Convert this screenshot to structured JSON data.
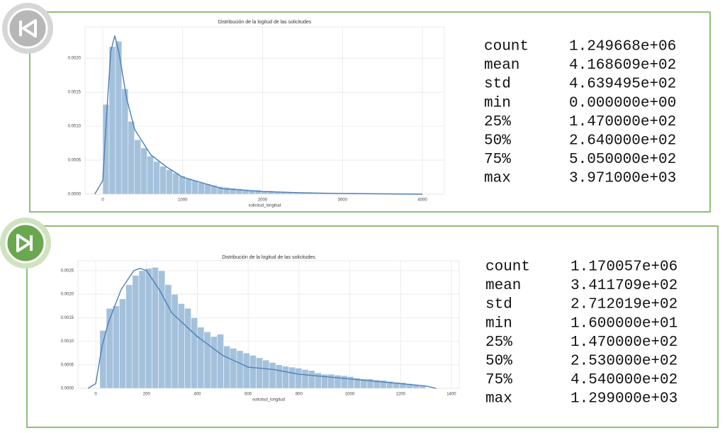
{
  "chart_data": [
    {
      "type": "histogram",
      "title": "Distribución de la logitud de las solicitudes",
      "x_label": "solicitud_longitud",
      "color": "#a4c1dc",
      "kde_color": "#4a80b5",
      "grid": true,
      "xlim": [
        -222,
        4275
      ],
      "ylim": [
        0,
        0.00246
      ],
      "xticks": [
        0,
        1000,
        2000,
        3000,
        4000
      ],
      "yticks": [
        {
          "value": 0,
          "label": "0.0000"
        },
        {
          "value": 0.0005,
          "label": "0.0005"
        },
        {
          "value": 0.001,
          "label": "0.0010"
        },
        {
          "value": 0.0015,
          "label": "0.0015"
        },
        {
          "value": 0.002,
          "label": "0.0020"
        }
      ],
      "bins": [
        0,
        79.42,
        158.84,
        238.26,
        317.68,
        397.1,
        476.52,
        555.94,
        635.36,
        714.78,
        794.2,
        873.62,
        953.04,
        1032.46,
        1111.88,
        1191.3,
        1270.72,
        1350.14,
        1429.56,
        1508.98,
        1588.4,
        1667.82,
        1747.24,
        1826.66,
        1906.08,
        1985.5,
        2064.92,
        2144.34,
        2223.76,
        2303.18,
        2382.6,
        2462.02,
        2541.44,
        2620.86,
        2700.28,
        2779.7,
        2859.12,
        2938.54,
        3017.96,
        3097.38,
        3176.8,
        3256.22,
        3335.64,
        3415.06,
        3494.48,
        3573.9,
        3653.32,
        3732.74,
        3812.16,
        3891.58,
        3971
      ],
      "values": [
        0.00132,
        0.00217,
        0.00225,
        0.00155,
        0.00107,
        0.0008,
        0.00068,
        0.00056,
        0.00048,
        0.00041,
        0.00036,
        0.00031,
        0.00027,
        0.00023,
        0.0002,
        0.00017,
        0.00015,
        0.00013,
        0.00011,
        0.0001,
        9e-05,
        8e-05,
        7e-05,
        6e-05,
        6e-05,
        5e-05,
        5e-05,
        4e-05,
        4e-05,
        3e-05,
        3e-05,
        3e-05,
        3e-05,
        2e-05,
        2e-05,
        2e-05,
        2e-05,
        2e-05,
        2e-05,
        2e-05,
        1e-05,
        1e-05,
        1e-05,
        1e-05,
        1e-05,
        1e-05,
        1e-05,
        1e-05,
        1e-05,
        1e-05
      ],
      "kde": {
        "x": [
          -100,
          0,
          50,
          100,
          150,
          200,
          300,
          400,
          600,
          800,
          1000,
          1500,
          2000,
          2500,
          3000,
          4000
        ],
        "y": [
          0,
          0.0002,
          0.0012,
          0.0021,
          0.00233,
          0.0021,
          0.0014,
          0.00095,
          0.00058,
          0.0004,
          0.00025,
          8e-05,
          4e-05,
          2e-05,
          1e-05,
          0
        ]
      }
    },
    {
      "type": "histogram",
      "title": "Distribución de la logitud de las solicitudes",
      "x_label": "solicitud_longitud",
      "color": "#a4c1dc",
      "kde_color": "#4a80b5",
      "grid": true,
      "xlim": [
        -70,
        1431
      ],
      "ylim": [
        0,
        0.00271
      ],
      "xticks": [
        0,
        200,
        400,
        600,
        800,
        1000,
        1200,
        1400
      ],
      "yticks": [
        {
          "value": 0,
          "label": "0.0000"
        },
        {
          "value": 0.0005,
          "label": "0.0005"
        },
        {
          "value": 0.001,
          "label": "0.0010"
        },
        {
          "value": 0.0015,
          "label": "0.0015"
        },
        {
          "value": 0.002,
          "label": "0.0020"
        },
        {
          "value": 0.0025,
          "label": "0.0025"
        }
      ],
      "bins": [
        16,
        41.66,
        67.32,
        92.98,
        118.64,
        144.3,
        169.96,
        195.62,
        221.28,
        246.94,
        272.6,
        298.26,
        323.92,
        349.58,
        375.24,
        400.9,
        426.56,
        452.22,
        477.88,
        503.54,
        529.2,
        554.86,
        580.52,
        606.18,
        631.84,
        657.5,
        683.16,
        708.82,
        734.48,
        760.14,
        785.8,
        811.46,
        837.12,
        862.78,
        888.44,
        914.1,
        939.76,
        965.42,
        991.08,
        1016.74,
        1042.4,
        1068.06,
        1093.72,
        1119.38,
        1145.04,
        1170.7,
        1196.36,
        1222.02,
        1247.68,
        1273.34,
        1299
      ],
      "values": [
        0.00123,
        0.0017,
        0.00175,
        0.0019,
        0.0022,
        0.0024,
        0.0025,
        0.00255,
        0.00257,
        0.0025,
        0.0022,
        0.002,
        0.0018,
        0.0017,
        0.0015,
        0.0013,
        0.0012,
        0.0011,
        0.00115,
        0.0009,
        0.00085,
        0.0008,
        0.00075,
        0.0007,
        0.00065,
        0.0006,
        0.00055,
        0.0005,
        0.00047,
        0.00045,
        0.00043,
        0.0004,
        0.00038,
        0.00033,
        0.0003,
        0.0003,
        0.00028,
        0.00027,
        0.00025,
        0.00022,
        0.0002,
        0.0002,
        0.00018,
        0.00017,
        0.00015,
        0.00013,
        0.00012,
        0.0001,
        8e-05,
        5e-05
      ],
      "kde": {
        "x": [
          -30,
          0,
          25,
          50,
          100,
          150,
          175,
          200,
          250,
          300,
          400,
          500,
          600,
          700,
          800,
          1000,
          1200,
          1300,
          1340
        ],
        "y": [
          0,
          0.0001,
          0.0009,
          0.0014,
          0.0021,
          0.0025,
          0.00255,
          0.0025,
          0.0021,
          0.0016,
          0.0011,
          0.0007,
          0.00045,
          0.0004,
          0.0003,
          0.0002,
          0.0001,
          5e-05,
          0
        ]
      }
    }
  ],
  "tables": [
    {
      "rows": [
        [
          "count",
          "1.249668e+06"
        ],
        [
          "mean",
          "4.168609e+02"
        ],
        [
          "std",
          "4.639495e+02"
        ],
        [
          "min",
          "0.000000e+00"
        ],
        [
          "25%",
          "1.470000e+02"
        ],
        [
          "50%",
          "2.640000e+02"
        ],
        [
          "75%",
          "5.050000e+02"
        ],
        [
          "max",
          "3.971000e+03"
        ]
      ]
    },
    {
      "rows": [
        [
          "count",
          "1.170057e+06"
        ],
        [
          "mean",
          "3.411709e+02"
        ],
        [
          "std",
          "2.712019e+02"
        ],
        [
          "min",
          "1.600000e+01"
        ],
        [
          "25%",
          "1.470000e+02"
        ],
        [
          "50%",
          "2.530000e+02"
        ],
        [
          "75%",
          "4.540000e+02"
        ],
        [
          "max",
          "1.299000e+03"
        ]
      ]
    }
  ]
}
